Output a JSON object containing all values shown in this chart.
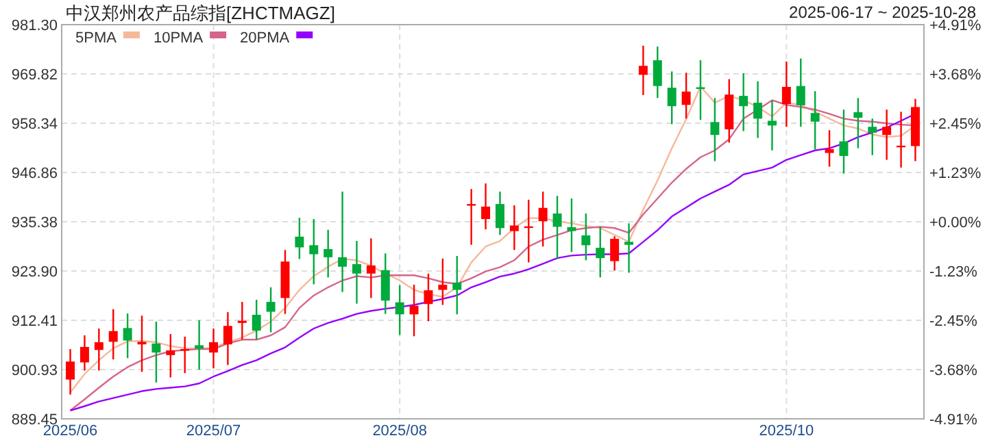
{
  "chart_data": {
    "type": "candlestick",
    "title": "中汉郑州农产品综指[ZHCTMAGZ]",
    "subtitle": "2025-06-17 ~ 2025-10-28",
    "categories": [
      "2025/06",
      null,
      null,
      null,
      null,
      null,
      null,
      null,
      null,
      null,
      "2025/07",
      null,
      null,
      null,
      null,
      null,
      null,
      null,
      null,
      null,
      null,
      null,
      null,
      "2025/08",
      null,
      null,
      null,
      null,
      null,
      null,
      null,
      null,
      null,
      null,
      null,
      null,
      null,
      null,
      null,
      null,
      null,
      null,
      null,
      null,
      null,
      null,
      null,
      null,
      null,
      null,
      "2025/10",
      null,
      null,
      null,
      null,
      null,
      null,
      null,
      null,
      null
    ],
    "ohlc": [
      [
        898.6,
        905.7,
        895.1,
        902.8
      ],
      [
        902.6,
        908.9,
        900.7,
        906.2
      ],
      [
        905.5,
        910.5,
        900.7,
        907.3
      ],
      [
        907.4,
        915.0,
        903.3,
        909.9
      ],
      [
        910.6,
        914.0,
        903.6,
        907.7
      ],
      [
        906.8,
        913.5,
        900.4,
        907.4
      ],
      [
        907.0,
        912.1,
        897.9,
        904.9
      ],
      [
        904.3,
        909.2,
        899.1,
        905.4
      ],
      [
        905.6,
        908.6,
        900.1,
        905.7
      ],
      [
        906.6,
        912.4,
        900.9,
        905.8
      ],
      [
        904.9,
        910.5,
        901.2,
        907.3
      ],
      [
        906.8,
        914.3,
        902.0,
        911.1
      ],
      [
        911.8,
        916.7,
        907.9,
        912.3
      ],
      [
        913.7,
        917.2,
        907.9,
        910.0
      ],
      [
        916.7,
        920.1,
        909.6,
        914.4
      ],
      [
        917.6,
        928.8,
        913.9,
        926.1
      ],
      [
        931.9,
        936.3,
        926.7,
        929.4
      ],
      [
        929.9,
        936.0,
        920.8,
        927.8
      ],
      [
        929.0,
        933.5,
        922.4,
        927.1
      ],
      [
        927.1,
        942.4,
        919.0,
        924.9
      ],
      [
        925.5,
        930.9,
        916.3,
        923.3
      ],
      [
        923.3,
        931.5,
        917.6,
        925.2
      ],
      [
        924.1,
        928.0,
        913.9,
        917.0
      ],
      [
        916.6,
        920.6,
        909.0,
        913.8
      ],
      [
        913.8,
        920.7,
        908.7,
        915.8
      ],
      [
        916.2,
        923.3,
        912.2,
        919.4
      ],
      [
        919.5,
        926.8,
        916.0,
        920.7
      ],
      [
        921.2,
        927.4,
        913.8,
        919.5
      ],
      [
        939.3,
        943.0,
        930.0,
        939.5
      ],
      [
        936.0,
        944.3,
        933.6,
        938.9
      ],
      [
        939.5,
        942.4,
        932.3,
        933.9
      ],
      [
        933.2,
        939.2,
        928.8,
        934.5
      ],
      [
        934.2,
        940.5,
        925.9,
        934.3
      ],
      [
        935.5,
        942.4,
        929.6,
        938.6
      ],
      [
        937.3,
        941.4,
        926.7,
        934.2
      ],
      [
        934.1,
        940.8,
        928.3,
        933.2
      ],
      [
        932.2,
        937.3,
        926.4,
        929.9
      ],
      [
        929.3,
        934.2,
        922.4,
        926.9
      ],
      [
        926.2,
        932.0,
        924.0,
        931.4
      ],
      [
        930.7,
        935.0,
        923.5,
        930.0
      ],
      [
        969.6,
        976.4,
        964.9,
        971.7
      ],
      [
        973.0,
        976.2,
        964.2,
        967.0
      ],
      [
        966.6,
        970.4,
        958.1,
        962.3
      ],
      [
        962.6,
        970.1,
        959.4,
        965.7
      ],
      [
        966.7,
        973.0,
        959.1,
        966.4
      ],
      [
        958.6,
        964.2,
        949.5,
        955.6
      ],
      [
        956.9,
        968.6,
        953.8,
        965.0
      ],
      [
        964.7,
        970.0,
        956.5,
        962.3
      ],
      [
        963.1,
        968.1,
        954.9,
        959.4
      ],
      [
        958.9,
        963.6,
        952.0,
        957.8
      ],
      [
        962.8,
        972.7,
        957.5,
        966.8
      ],
      [
        967.0,
        973.4,
        957.5,
        962.5
      ],
      [
        960.7,
        965.8,
        952.2,
        958.7
      ],
      [
        951.4,
        956.7,
        948.2,
        952.3
      ],
      [
        954.1,
        961.5,
        946.6,
        950.7
      ],
      [
        960.9,
        964.2,
        952.5,
        959.6
      ],
      [
        957.5,
        959.4,
        950.9,
        956.1
      ],
      [
        955.6,
        961.5,
        949.8,
        957.5
      ],
      [
        953.0,
        961.0,
        948.0,
        953.1
      ],
      [
        953.0,
        964.0,
        949.5,
        962.1
      ]
    ],
    "colors": [
      "#ff0000",
      "#ff0000",
      "#ff0000",
      "#ff0000",
      "#00aa3c",
      "#ff0000",
      "#00aa3c",
      "#ff0000",
      "#ff0000",
      "#00aa3c",
      "#ff0000",
      "#ff0000",
      "#ff0000",
      "#00aa3c",
      "#00aa3c",
      "#ff0000",
      "#00aa3c",
      "#00aa3c",
      "#00aa3c",
      "#00aa3c",
      "#00aa3c",
      "#ff0000",
      "#00aa3c",
      "#00aa3c",
      "#ff0000",
      "#ff0000",
      "#ff0000",
      "#00aa3c",
      "#ff0000",
      "#ff0000",
      "#00aa3c",
      "#ff0000",
      "#ff0000",
      "#ff0000",
      "#00aa3c",
      "#00aa3c",
      "#00aa3c",
      "#00aa3c",
      "#ff0000",
      "#00aa3c",
      "#ff0000",
      "#00aa3c",
      "#00aa3c",
      "#ff0000",
      "#00aa3c",
      "#00aa3c",
      "#ff0000",
      "#00aa3c",
      "#00aa3c",
      "#00aa3c",
      "#ff0000",
      "#00aa3c",
      "#00aa3c",
      "#ff0000",
      "#00aa3c",
      "#00aa3c",
      "#00aa3c",
      "#ff0000",
      "#ff0000",
      "#ff0000"
    ],
    "series": [
      {
        "name": "5PMA",
        "type": "line",
        "color": "#f5b99a",
        "values": [
          895.6,
          899.9,
          903.1,
          905.9,
          907.5,
          907.6,
          907.3,
          906.4,
          905.9,
          905.9,
          906.0,
          907.3,
          908.4,
          910.0,
          912.1,
          915.3,
          919.5,
          922.7,
          924.9,
          926.7,
          926.4,
          925.1,
          923.3,
          921.7,
          919.5,
          918.5,
          917.9,
          920.1,
          925.9,
          929.6,
          930.9,
          933.9,
          936.2,
          936.2,
          935.5,
          935.0,
          934.4,
          933.9,
          932.3,
          930.7,
          938.2,
          945.0,
          952.5,
          959.3,
          966.9,
          963.1,
          964.7,
          963.7,
          962.1,
          959.9,
          963.1,
          962.6,
          961.0,
          959.4,
          957.8,
          957.1,
          955.7,
          955.1,
          955.4,
          957.8
        ]
      },
      {
        "name": "10PMA",
        "type": "line",
        "color": "#d6648a",
        "values": [
          891.4,
          894.0,
          896.7,
          899.3,
          901.5,
          903.1,
          904.3,
          905.2,
          905.5,
          905.7,
          905.7,
          907.0,
          907.9,
          907.9,
          908.9,
          910.8,
          915.3,
          918.2,
          920.1,
          921.7,
          922.7,
          922.4,
          922.9,
          922.9,
          922.9,
          922.2,
          921.3,
          920.9,
          922.2,
          923.8,
          924.8,
          926.4,
          929.6,
          931.2,
          932.3,
          933.4,
          933.9,
          934.2,
          933.9,
          932.8,
          937.1,
          940.8,
          944.5,
          947.7,
          950.4,
          952.0,
          954.6,
          959.4,
          961.5,
          963.7,
          962.6,
          962.1,
          961.5,
          960.5,
          959.4,
          958.9,
          958.7,
          958.3,
          958.0,
          957.8
        ]
      },
      {
        "name": "20PMA",
        "type": "line",
        "color": "#9400ff",
        "values": [
          891.4,
          892.4,
          893.5,
          894.3,
          895.1,
          895.9,
          896.4,
          896.7,
          897.0,
          897.7,
          899.3,
          900.6,
          902.0,
          903.1,
          904.7,
          906.1,
          908.4,
          910.5,
          911.8,
          912.8,
          913.9,
          914.6,
          915.1,
          915.5,
          916.0,
          916.7,
          917.4,
          918.2,
          920.1,
          921.3,
          922.6,
          923.3,
          924.3,
          925.6,
          926.9,
          927.5,
          927.7,
          927.8,
          927.8,
          928.0,
          930.7,
          933.4,
          936.6,
          938.7,
          940.8,
          942.4,
          944.0,
          946.4,
          947.2,
          948.0,
          949.8,
          950.9,
          952.0,
          952.5,
          953.6,
          955.1,
          956.2,
          957.3,
          958.9,
          960.5
        ]
      }
    ],
    "ylim": [
      889.45,
      981.3
    ],
    "yticks": [
      {
        "value": 889.45,
        "label": "889.45"
      },
      {
        "value": 900.93,
        "label": "900.93"
      },
      {
        "value": 912.41,
        "label": "912.41"
      },
      {
        "value": 923.9,
        "label": "923.90"
      },
      {
        "value": 935.38,
        "label": "935.38"
      },
      {
        "value": 946.86,
        "label": "946.86"
      },
      {
        "value": 958.34,
        "label": "958.34"
      },
      {
        "value": 969.82,
        "label": "969.82"
      },
      {
        "value": 981.3,
        "label": "981.30"
      }
    ],
    "y2lim": [
      -4.91,
      4.91
    ],
    "y2ticks": [
      {
        "value": -4.91,
        "label": "-4.91%"
      },
      {
        "value": -3.68,
        "label": "-3.68%"
      },
      {
        "value": -2.45,
        "label": "-2.45%"
      },
      {
        "value": -1.23,
        "label": "-1.23%"
      },
      {
        "value": 0,
        "label": "+0.00%"
      },
      {
        "value": 1.23,
        "label": "+1.23%"
      },
      {
        "value": 2.45,
        "label": "+2.45%"
      },
      {
        "value": 3.68,
        "label": "+3.68%"
      },
      {
        "value": 4.91,
        "label": "+4.91%"
      }
    ],
    "grid": true,
    "legend": "top left"
  }
}
